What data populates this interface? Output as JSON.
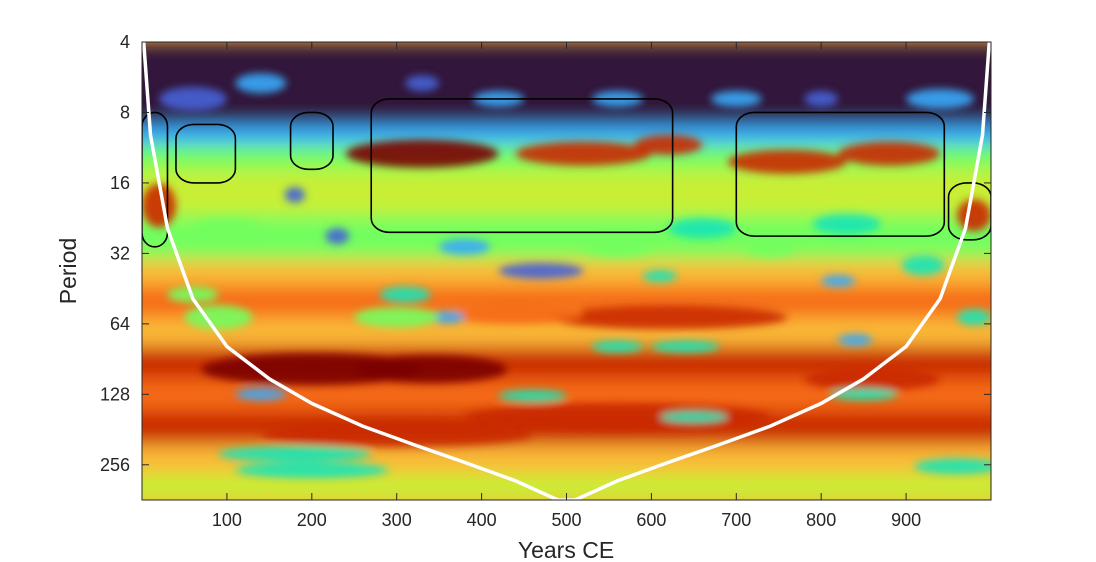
{
  "chart_data": {
    "type": "heatmap",
    "title": "",
    "xlabel": "Years CE",
    "ylabel": "Period",
    "xlim": [
      0,
      1000
    ],
    "ylim": [
      4,
      362
    ],
    "y_scale": "log2",
    "y_reversed": true,
    "x_ticks": [
      {
        "value": 100,
        "label": "100"
      },
      {
        "value": 200,
        "label": "200"
      },
      {
        "value": 300,
        "label": "300"
      },
      {
        "value": 400,
        "label": "400"
      },
      {
        "value": 500,
        "label": "500"
      },
      {
        "value": 600,
        "label": "600"
      },
      {
        "value": 700,
        "label": "700"
      },
      {
        "value": 800,
        "label": "800"
      },
      {
        "value": 900,
        "label": "900"
      }
    ],
    "y_ticks": [
      {
        "value": 4,
        "label": "4"
      },
      {
        "value": 8,
        "label": "8"
      },
      {
        "value": 16,
        "label": "16"
      },
      {
        "value": 32,
        "label": "32"
      },
      {
        "value": 64,
        "label": "64"
      },
      {
        "value": 128,
        "label": "128"
      },
      {
        "value": 256,
        "label": "256"
      }
    ],
    "colormap": [
      "#30123b",
      "#4662d7",
      "#36aaf9",
      "#1ae4b6",
      "#72fe5e",
      "#c8ef34",
      "#faba39",
      "#f66b19",
      "#ca2a04",
      "#7a0403"
    ],
    "cone_of_influence": {
      "color": "#ffffff",
      "x": [
        2,
        10,
        30,
        60,
        100,
        150,
        200,
        260,
        320,
        380,
        440,
        490,
        510,
        560,
        620,
        680,
        740,
        800,
        850,
        900,
        940,
        970,
        990,
        998
      ],
      "period": [
        4,
        10,
        25,
        50,
        80,
        110,
        140,
        175,
        210,
        250,
        300,
        362,
        362,
        300,
        250,
        210,
        175,
        140,
        110,
        80,
        50,
        25,
        10,
        4
      ]
    },
    "significance_contour_regions": [
      {
        "x_range": [
          0,
          30
        ],
        "period_range": [
          8,
          30
        ]
      },
      {
        "x_range": [
          40,
          110
        ],
        "period_range": [
          9,
          16
        ]
      },
      {
        "x_range": [
          175,
          225
        ],
        "period_range": [
          8,
          14
        ]
      },
      {
        "x_range": [
          270,
          625
        ],
        "period_range": [
          7,
          26
        ]
      },
      {
        "x_range": [
          700,
          945
        ],
        "period_range": [
          8,
          27
        ]
      },
      {
        "x_range": [
          950,
          1000
        ],
        "period_range": [
          16,
          28
        ]
      }
    ]
  }
}
